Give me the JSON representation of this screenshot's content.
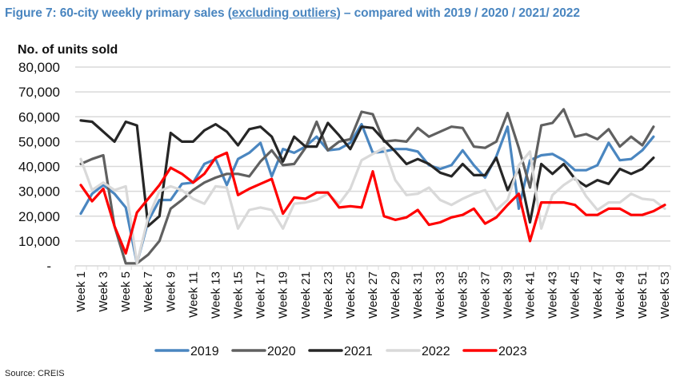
{
  "title": {
    "prefix": "Figure 7: 60-city weekly primary sales (",
    "underlined": "excluding outliers",
    "suffix": ") – compared with 2019 / 2020 / 2021/ 2022"
  },
  "source": "Source: CREIS",
  "chart_data": {
    "type": "line",
    "title": "Figure 7: 60-city weekly primary sales (excluding outliers) – compared with 2019 / 2020 / 2021/ 2022",
    "xlabel": "",
    "ylabel": "No. of units sold",
    "ylim": [
      0,
      80000
    ],
    "yticks": [
      0,
      10000,
      20000,
      30000,
      40000,
      50000,
      60000,
      70000,
      80000
    ],
    "ytick_labels": [
      "-",
      "10,000",
      "20,000",
      "30,000",
      "40,000",
      "50,000",
      "60,000",
      "70,000",
      "80,000"
    ],
    "grid": true,
    "legend_position": "bottom",
    "categories": [
      "Week 1",
      "Week 2",
      "Week 3",
      "Week 4",
      "Week 5",
      "Week 6",
      "Week 7",
      "Week 8",
      "Week 9",
      "Week 10",
      "Week 11",
      "Week 12",
      "Week 13",
      "Week 14",
      "Week 15",
      "Week 16",
      "Week 17",
      "Week 18",
      "Week 19",
      "Week 20",
      "Week 21",
      "Week 22",
      "Week 23",
      "Week 24",
      "Week 25",
      "Week 26",
      "Week 27",
      "Week 28",
      "Week 29",
      "Week 30",
      "Week 31",
      "Week 32",
      "Week 33",
      "Week 34",
      "Week 35",
      "Week 36",
      "Week 37",
      "Week 38",
      "Week 39",
      "Week 40",
      "Week 41",
      "Week 42",
      "Week 43",
      "Week 44",
      "Week 45",
      "Week 46",
      "Week 47",
      "Week 48",
      "Week 49",
      "Week 50",
      "Week 51",
      "Week 52",
      "Week 53"
    ],
    "tick_labels_shown": [
      "Week 1",
      "Week 3",
      "Week 5",
      "Week 7",
      "Week 9",
      "Week 11",
      "Week 13",
      "Week 15",
      "Week 17",
      "Week 19",
      "Week 21",
      "Week 23",
      "Week 25",
      "Week 27",
      "Week 29",
      "Week 31",
      "Week 33",
      "Week 35",
      "Week 37",
      "Week 39",
      "Week 41",
      "Week 43",
      "Week 45",
      "Week 47",
      "Week 49",
      "Week 51",
      "Week 53"
    ],
    "series": [
      {
        "name": "2019",
        "color": "#4a86c0",
        "values": [
          21000,
          29000,
          32500,
          29000,
          23500,
          1000,
          18000,
          26500,
          26500,
          33000,
          33500,
          41000,
          43000,
          32500,
          43000,
          45500,
          49500,
          36000,
          47000,
          45500,
          48000,
          52000,
          46500,
          47000,
          49500,
          57000,
          45500,
          46000,
          47000,
          47000,
          46000,
          40500,
          39000,
          40500,
          46500,
          40500,
          35500,
          44000,
          56000,
          23000,
          42500,
          44500,
          45000,
          42500,
          38500,
          38500,
          40500,
          49500,
          42500,
          43000,
          46500,
          52000,
          null
        ]
      },
      {
        "name": "2020",
        "color": "#606060",
        "values": [
          41000,
          43000,
          44500,
          16000,
          1000,
          1000,
          4500,
          10000,
          23000,
          26500,
          30500,
          33500,
          35500,
          37000,
          37000,
          36000,
          42000,
          46500,
          40500,
          41000,
          47500,
          58000,
          46500,
          50000,
          51000,
          62000,
          61000,
          50000,
          50500,
          50000,
          55500,
          52000,
          54000,
          56000,
          55500,
          48000,
          47500,
          50000,
          61500,
          47500,
          31500,
          56500,
          57500,
          63000,
          52000,
          53000,
          51000,
          55000,
          48000,
          52000,
          48500,
          56000,
          null
        ]
      },
      {
        "name": "2021",
        "color": "#262626",
        "values": [
          58500,
          58000,
          54000,
          50000,
          58000,
          56500,
          16000,
          20000,
          53500,
          50000,
          50000,
          54500,
          57000,
          54000,
          48500,
          55000,
          56000,
          52000,
          42000,
          52000,
          48000,
          48000,
          57500,
          52500,
          47000,
          56000,
          55500,
          50500,
          46000,
          41000,
          43000,
          41000,
          37500,
          36000,
          41000,
          36500,
          36500,
          43500,
          30500,
          39000,
          17500,
          41000,
          37000,
          41000,
          35000,
          32000,
          34500,
          33000,
          39000,
          37000,
          39000,
          43500,
          null
        ]
      },
      {
        "name": "2022",
        "color": "#d9d9d9",
        "values": [
          43000,
          30500,
          33500,
          30500,
          32000,
          1000,
          19500,
          30000,
          32000,
          30500,
          27000,
          25000,
          32000,
          31500,
          15000,
          22500,
          23500,
          22500,
          15000,
          25000,
          25500,
          26500,
          29000,
          25000,
          31000,
          42500,
          45000,
          47500,
          34500,
          28500,
          29000,
          31500,
          26500,
          24500,
          27000,
          29000,
          30500,
          22500,
          26500,
          40500,
          46000,
          15000,
          28500,
          32500,
          35500,
          28000,
          22500,
          25500,
          25500,
          29000,
          27000,
          26500,
          23000
        ]
      },
      {
        "name": "2023",
        "color": "#ff0000",
        "values": [
          32500,
          26000,
          31000,
          16000,
          5000,
          21500,
          27000,
          32500,
          39500,
          37000,
          33500,
          37000,
          43500,
          45500,
          28500,
          31000,
          33000,
          35000,
          21000,
          27500,
          27000,
          29500,
          29500,
          23500,
          24000,
          23500,
          38000,
          20000,
          18500,
          19500,
          22500,
          16500,
          17500,
          19500,
          20500,
          23000,
          17000,
          19500,
          24500,
          29000,
          10000,
          25500,
          25500,
          25500,
          24500,
          20500,
          20500,
          23000,
          23000,
          20500,
          20500,
          22000,
          24500
        ]
      }
    ]
  }
}
